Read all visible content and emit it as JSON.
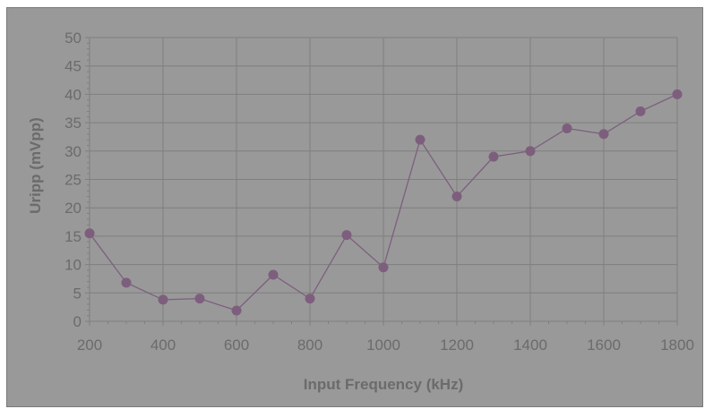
{
  "chart_data": {
    "type": "line",
    "title": "",
    "xlabel": "Input Frequency (kHz)",
    "ylabel": "Uripp (mVpp)",
    "xlim": [
      200,
      1800
    ],
    "ylim": [
      0,
      50
    ],
    "xticks": [
      200,
      400,
      600,
      800,
      1000,
      1200,
      1400,
      1600,
      1800
    ],
    "yticks": [
      0,
      5,
      10,
      15,
      20,
      25,
      30,
      35,
      40,
      45,
      50
    ],
    "grid": true,
    "legend": "none",
    "x": [
      200,
      300,
      400,
      500,
      600,
      700,
      800,
      900,
      1000,
      1100,
      1200,
      1300,
      1400,
      1500,
      1600,
      1700,
      1800
    ],
    "series": [
      {
        "values": [
          15.5,
          6.8,
          3.8,
          4.0,
          1.9,
          8.2,
          4.0,
          15.2,
          9.5,
          32.0,
          22.0,
          29.0,
          30.0,
          34.0,
          33.0,
          37.0,
          40.0
        ],
        "color": "#7d5f7d"
      }
    ],
    "colors": {
      "plot_background": "#999999",
      "gridline": "#7f7f7f",
      "axis_text": "#6b6b6b"
    }
  }
}
